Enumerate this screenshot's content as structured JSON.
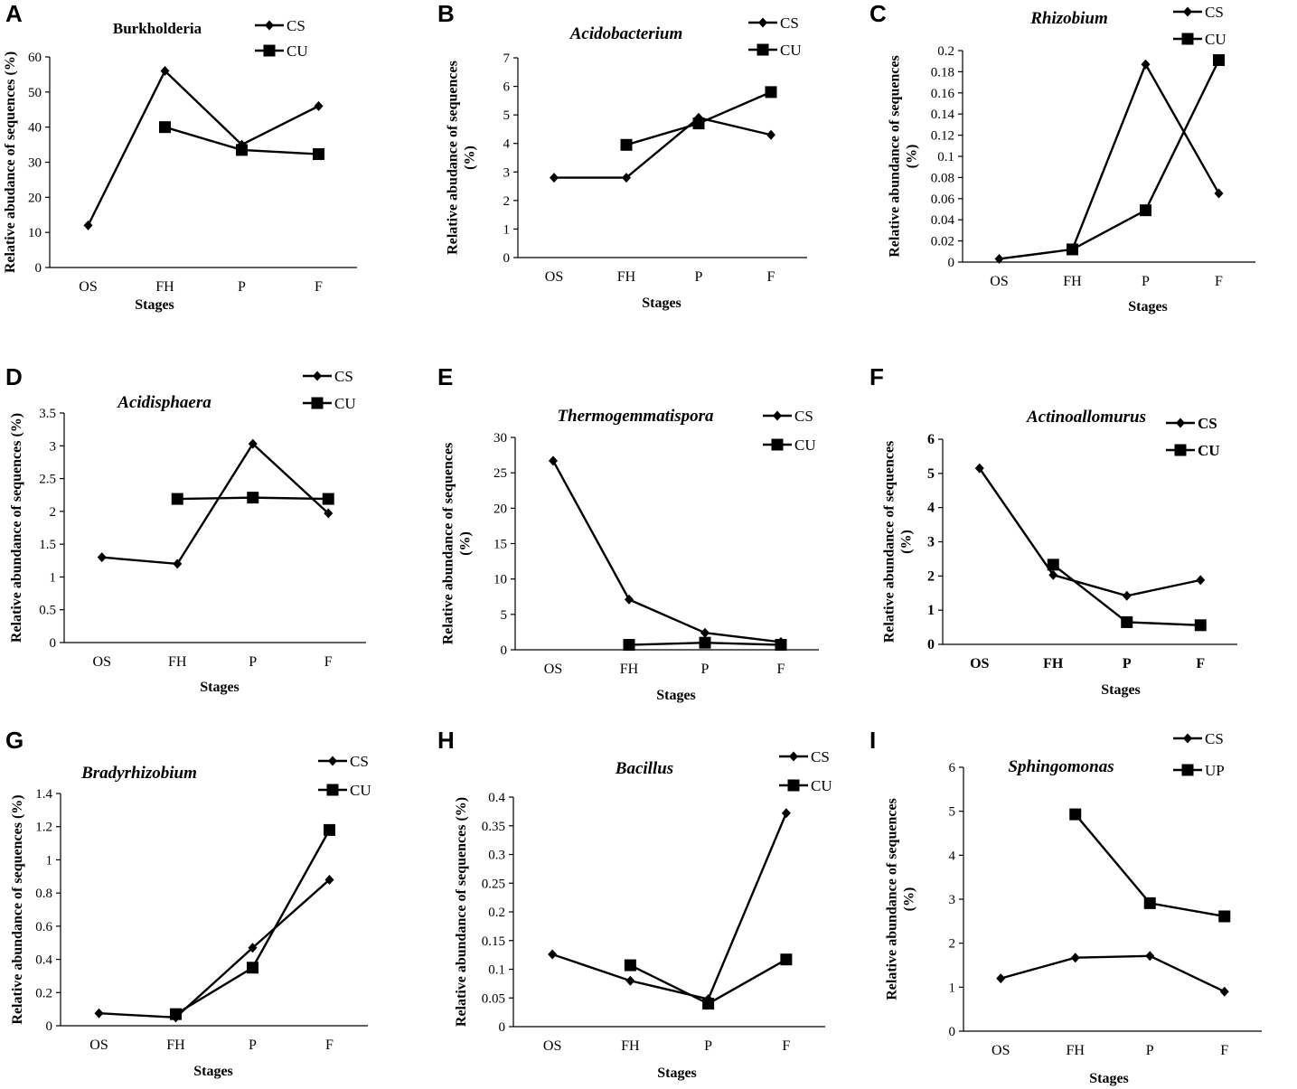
{
  "chart_data": [
    {
      "panel": "A",
      "type": "line",
      "title": "Burkholderia",
      "title_italic": false,
      "xlabel": "Stages",
      "ylabel": [
        "Relative abudance of sequences (%)"
      ],
      "categories": [
        "OS",
        "FH",
        "P",
        "F"
      ],
      "ylim": [
        0,
        60
      ],
      "yticks": [
        "0",
        "10",
        "20",
        "30",
        "40",
        "50",
        "60"
      ],
      "series": [
        {
          "name": "CS",
          "marker": "diamond",
          "values": [
            12,
            56,
            35,
            46
          ]
        },
        {
          "name": "CU",
          "marker": "square",
          "values": [
            null,
            40,
            33.5,
            32.3
          ]
        }
      ]
    },
    {
      "panel": "B",
      "type": "line",
      "title": "Acidobacterium",
      "title_italic": true,
      "xlabel": "Stages",
      "ylabel": [
        "Relative abudance of sequences",
        "(%)"
      ],
      "categories": [
        "OS",
        "FH",
        "P",
        "F"
      ],
      "ylim": [
        0,
        7
      ],
      "yticks": [
        "0",
        "1",
        "2",
        "3",
        "4",
        "5",
        "6",
        "7"
      ],
      "series": [
        {
          "name": "CS",
          "marker": "diamond",
          "values": [
            2.8,
            2.8,
            4.9,
            4.3
          ]
        },
        {
          "name": "CU",
          "marker": "square",
          "values": [
            null,
            3.95,
            4.7,
            5.8
          ]
        }
      ]
    },
    {
      "panel": "C",
      "type": "line",
      "title": "Rhizobium",
      "title_italic": true,
      "xlabel": "Stages",
      "ylabel": [
        "Relative abundance of sequences",
        "(%)"
      ],
      "categories": [
        "OS",
        "FH",
        "P",
        "F"
      ],
      "ylim": [
        0,
        0.2
      ],
      "yticks": [
        "0",
        "0.02",
        "0.04",
        "0.06",
        "0.08",
        "0.1",
        "0.12",
        "0.14",
        "0.16",
        "0.18",
        "0.2"
      ],
      "series": [
        {
          "name": "CS",
          "marker": "diamond",
          "values": [
            0.003,
            0.012,
            0.187,
            0.065
          ]
        },
        {
          "name": "CU",
          "marker": "square",
          "values": [
            null,
            0.012,
            0.049,
            0.191
          ]
        }
      ]
    },
    {
      "panel": "D",
      "type": "line",
      "title": "Acidisphaera",
      "title_italic": true,
      "xlabel": "Stages",
      "ylabel": [
        "Relative abundance of sequences (%)"
      ],
      "categories": [
        "OS",
        "FH",
        "P",
        "F"
      ],
      "ylim": [
        0,
        3.5
      ],
      "yticks": [
        "0",
        "0.5",
        "1",
        "1.5",
        "2",
        "2.5",
        "3",
        "3.5"
      ],
      "series": [
        {
          "name": "CS",
          "marker": "diamond",
          "values": [
            1.3,
            1.2,
            3.03,
            1.97
          ]
        },
        {
          "name": "CU",
          "marker": "square",
          "values": [
            null,
            2.19,
            2.21,
            2.19
          ]
        }
      ]
    },
    {
      "panel": "E",
      "type": "line",
      "title": "Thermogemmatispora",
      "title_italic": true,
      "xlabel": "Stages",
      "ylabel": [
        "Relative abundance of sequences",
        "(%)"
      ],
      "categories": [
        "OS",
        "FH",
        "P",
        "F"
      ],
      "ylim": [
        0,
        30
      ],
      "yticks": [
        "0",
        "5",
        "10",
        "15",
        "20",
        "25",
        "30"
      ],
      "series": [
        {
          "name": "CS",
          "marker": "diamond",
          "values": [
            26.7,
            7.1,
            2.4,
            1.1
          ]
        },
        {
          "name": "CU",
          "marker": "square",
          "values": [
            null,
            0.7,
            1.0,
            0.7
          ]
        }
      ]
    },
    {
      "panel": "F",
      "type": "line",
      "title": "Actinoallomurus",
      "title_italic": true,
      "xlabel": "Stages",
      "ylabel": [
        "Relative abundance of sequences",
        "(%)"
      ],
      "categories": [
        "OS",
        "FH",
        "P",
        "F"
      ],
      "ylim": [
        0,
        6
      ],
      "yticks": [
        "0",
        "1",
        "2",
        "3",
        "4",
        "5",
        "6"
      ],
      "series": [
        {
          "name": "CS",
          "marker": "diamond",
          "values": [
            5.15,
            2.03,
            1.42,
            1.88
          ]
        },
        {
          "name": "CU",
          "marker": "square",
          "values": [
            null,
            2.33,
            0.65,
            0.56
          ]
        }
      ]
    },
    {
      "panel": "G",
      "type": "line",
      "title": "Bradyrhizobium",
      "title_italic": true,
      "xlabel": "Stages",
      "ylabel": [
        "Relative abundance of sequences (%)"
      ],
      "categories": [
        "OS",
        "FH",
        "P",
        "F"
      ],
      "ylim": [
        0,
        1.4
      ],
      "yticks": [
        "0",
        "0.2",
        "0.4",
        "0.6",
        "0.8",
        "1",
        "1.2",
        "1.4"
      ],
      "series": [
        {
          "name": "CS",
          "marker": "diamond",
          "values": [
            0.075,
            0.05,
            0.47,
            0.88
          ]
        },
        {
          "name": "CU",
          "marker": "square",
          "values": [
            null,
            0.07,
            0.35,
            1.18
          ]
        }
      ]
    },
    {
      "panel": "H",
      "type": "line",
      "title": "Bacillus",
      "title_italic": true,
      "xlabel": "Stages",
      "ylabel": [
        "Relative abundance of sequences (%)"
      ],
      "categories": [
        "OS",
        "FH",
        "P",
        "F"
      ],
      "ylim": [
        0,
        0.4
      ],
      "yticks": [
        "0",
        "0.05",
        "0.1",
        "0.15",
        "0.2",
        "0.25",
        "0.3",
        "0.35",
        "0.4"
      ],
      "series": [
        {
          "name": "CS",
          "marker": "diamond",
          "values": [
            0.126,
            0.08,
            0.048,
            0.372
          ]
        },
        {
          "name": "CU",
          "marker": "square",
          "values": [
            null,
            0.107,
            0.04,
            0.117
          ]
        }
      ]
    },
    {
      "panel": "I",
      "type": "line",
      "title": "Sphingomonas",
      "title_italic": true,
      "xlabel": "Stages",
      "ylabel": [
        "Relative abundance of sequences",
        "(%)"
      ],
      "categories": [
        "OS",
        "FH",
        "P",
        "F"
      ],
      "ylim": [
        0,
        6
      ],
      "yticks": [
        "0",
        "1",
        "2",
        "3",
        "4",
        "5",
        "6"
      ],
      "series": [
        {
          "name": "CS",
          "marker": "diamond",
          "values": [
            1.2,
            1.67,
            1.71,
            0.9
          ]
        },
        {
          "name": "UP",
          "marker": "square",
          "values": [
            null,
            4.93,
            2.91,
            2.61
          ]
        }
      ]
    }
  ]
}
